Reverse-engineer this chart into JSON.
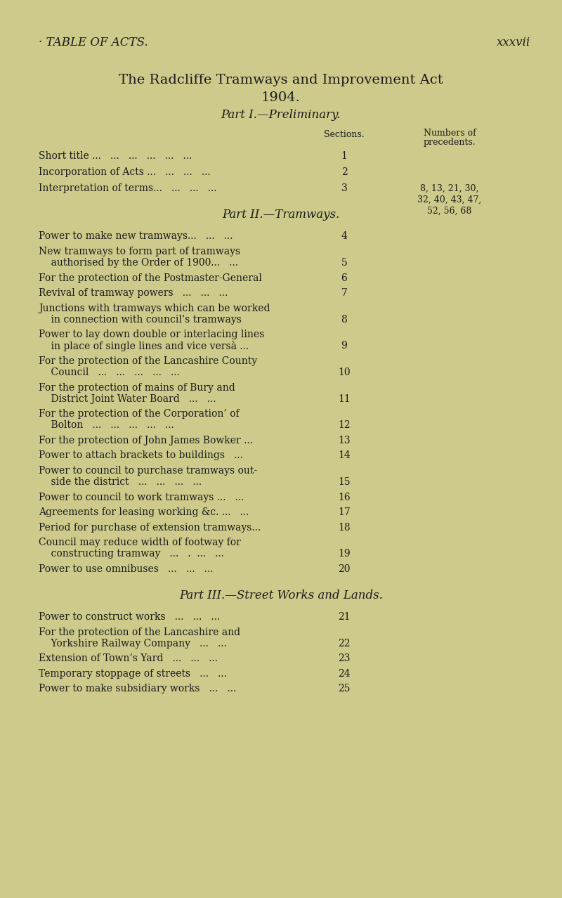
{
  "background_color": "#ceca8b",
  "text_color": "#1a1a1a",
  "header_left": "· TABLE OF ACTS.",
  "header_right": "xxxvii",
  "main_title_line1": "The Radcliffe Tramways and Improvement Act",
  "main_title_line2": "1904.",
  "part1_heading": "Part I.—Preliminary.",
  "part2_heading": "Part II.—Tramways.",
  "part3_heading": "Part III.—Street Works and Lands.",
  "col_sections": "Sections.",
  "col_numbers": "Numbers of",
  "col_precedents": "precedents.",
  "part1_entries": [
    {
      "text": "Short title ...   ...   ...   ...   ...   ...",
      "section": "1",
      "prec": ""
    },
    {
      "text": "Incorporation of Acts ...   ...   ...   ...",
      "section": "2",
      "prec": ""
    },
    {
      "text": "Interpretation of terms...   ...   ...   ...",
      "section": "3",
      "prec": "8, 13, 21, 30,\n32, 40, 43, 47,\n52, 56, 68"
    }
  ],
  "part2_entries": [
    {
      "lines": [
        "Power to make new tramways...   ...   ..."
      ],
      "section": "4"
    },
    {
      "lines": [
        "New tramways to form part of tramways",
        "    authorised by the Order of 1900...   ..."
      ],
      "section": "5"
    },
    {
      "lines": [
        "For the protection of the Postmaster-General"
      ],
      "section": "6"
    },
    {
      "lines": [
        "Revival of tramway powers   ...   ...   ..."
      ],
      "section": "7"
    },
    {
      "lines": [
        "Junctions with tramways which can be worked",
        "    in connection with council’s tramways"
      ],
      "section": "8"
    },
    {
      "lines": [
        "Power to lay down double or interlacing lines",
        "    in place of single lines and vice versà ..."
      ],
      "section": "9"
    },
    {
      "lines": [
        "For the protection of the Lancashire County",
        "    Council   ...   ...   ...   ...   ..."
      ],
      "section": "10"
    },
    {
      "lines": [
        "For the protection of mains of Bury and",
        "    District Joint Water Board   ...   ..."
      ],
      "section": "11"
    },
    {
      "lines": [
        "For the protection of the Corporation’ of",
        "    Bolton   ...   ...   ...   ...   ..."
      ],
      "section": "12"
    },
    {
      "lines": [
        "For the protection of John James Bowker ..."
      ],
      "section": "13"
    },
    {
      "lines": [
        "Power to attach brackets to buildings   ..."
      ],
      "section": "14"
    },
    {
      "lines": [
        "Power to council to purchase tramways out-",
        "    side the district   ...   ...   ...   ..."
      ],
      "section": "15"
    },
    {
      "lines": [
        "Power to council to work tramways ...   ..."
      ],
      "section": "16"
    },
    {
      "lines": [
        "Agreements for leasing working &c. ...   ..."
      ],
      "section": "17"
    },
    {
      "lines": [
        "Period for purchase of extension tramways..."
      ],
      "section": "18"
    },
    {
      "lines": [
        "Council may reduce width of footway for",
        "    constructing tramway   ...   .  ...   ..."
      ],
      "section": "19"
    },
    {
      "lines": [
        "Power to use omnibuses   ...   ...   ..."
      ],
      "section": "20"
    }
  ],
  "part3_entries": [
    {
      "lines": [
        "Power to construct works   ...   ...   ..."
      ],
      "section": "21"
    },
    {
      "lines": [
        "For the protection of the Lancashire and",
        "    Yorkshire Railway Company   ...   ..."
      ],
      "section": "22"
    },
    {
      "lines": [
        "Extension of Town’s Yard   ...   ...   ..."
      ],
      "section": "23"
    },
    {
      "lines": [
        "Temporary stoppage of streets   ...   ..."
      ],
      "section": "24"
    },
    {
      "lines": [
        "Power to make subsidiary works   ...   ..."
      ],
      "section": "25"
    }
  ]
}
